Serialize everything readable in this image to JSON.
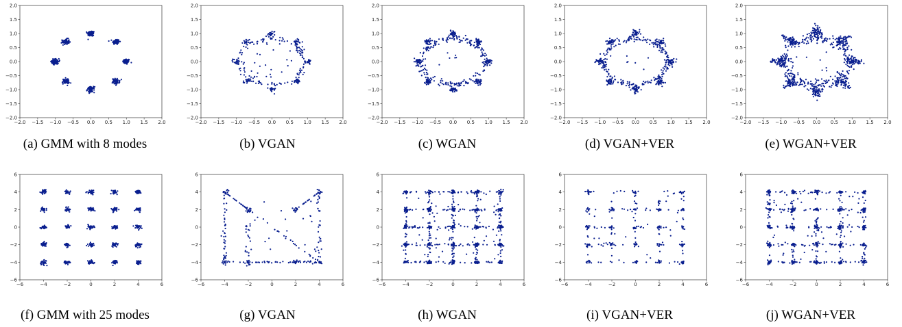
{
  "colors": {
    "points": "#0a1f8f",
    "axes": "#333333",
    "background": "#ffffff"
  },
  "chart_data": [
    {
      "id": "a",
      "type": "scatter",
      "caption": "(a) GMM with 8 modes",
      "xlim": [
        -2,
        2
      ],
      "ylim": [
        -2,
        2
      ],
      "xticks": [
        "−2.0",
        "−1.5",
        "−1.0",
        "−0.5",
        "0.0",
        "0.5",
        "1.0",
        "1.5",
        "2.0"
      ],
      "yticks": [
        "−2.0",
        "−1.5",
        "−1.0",
        "−0.5",
        "0.0",
        "0.5",
        "1.0",
        "1.5",
        "2.0"
      ],
      "modes": [
        [
          1,
          0
        ],
        [
          0.707,
          0.707
        ],
        [
          0,
          1
        ],
        [
          -0.707,
          0.707
        ],
        [
          -1,
          0
        ],
        [
          -0.707,
          -0.707
        ],
        [
          0,
          -1
        ],
        [
          0.707,
          -0.707
        ]
      ],
      "mode_spread": 0.05,
      "scatter_style": "tight-clusters"
    },
    {
      "id": "b",
      "type": "scatter",
      "caption": "(b) VGAN",
      "xlim": [
        -2,
        2
      ],
      "ylim": [
        -2,
        2
      ],
      "xticks": [
        "−2.0",
        "−1.5",
        "−1.0",
        "−0.5",
        "0.0",
        "0.5",
        "1.0",
        "1.5",
        "2.0"
      ],
      "yticks": [
        "−2.0",
        "−1.5",
        "−1.0",
        "−0.5",
        "0.0",
        "0.5",
        "1.0",
        "1.5",
        "2.0"
      ],
      "modes": [
        [
          1,
          0
        ],
        [
          0.707,
          0.707
        ],
        [
          0,
          1
        ],
        [
          -0.707,
          0.707
        ],
        [
          -1,
          0
        ],
        [
          -0.707,
          -0.707
        ],
        [
          0,
          -1
        ],
        [
          0.707,
          -0.707
        ]
      ],
      "mode_spread": 0.05,
      "scatter_style": "ring-sparse"
    },
    {
      "id": "c",
      "type": "scatter",
      "caption": "(c) WGAN",
      "xlim": [
        -2,
        2
      ],
      "ylim": [
        -2,
        2
      ],
      "xticks": [
        "−2.0",
        "−1.5",
        "−1.0",
        "−0.5",
        "0.0",
        "0.5",
        "1.0",
        "1.5",
        "2.0"
      ],
      "yticks": [
        "−2.0",
        "−1.5",
        "−1.0",
        "−0.5",
        "0.0",
        "0.5",
        "1.0",
        "1.5",
        "2.0"
      ],
      "modes": [
        [
          1,
          0
        ],
        [
          0.707,
          0.707
        ],
        [
          0,
          1
        ],
        [
          -0.707,
          0.707
        ],
        [
          -1,
          0
        ],
        [
          -0.707,
          -0.707
        ],
        [
          0,
          -1
        ],
        [
          0.707,
          -0.707
        ]
      ],
      "mode_spread": 0.05,
      "scatter_style": "ring-dense"
    },
    {
      "id": "d",
      "type": "scatter",
      "caption": "(d) VGAN+VER",
      "xlim": [
        -2,
        2
      ],
      "ylim": [
        -2,
        2
      ],
      "xticks": [
        "−2.0",
        "−1.5",
        "−1.0",
        "−0.5",
        "0.0",
        "0.5",
        "1.0",
        "1.5",
        "2.0"
      ],
      "yticks": [
        "−2.0",
        "−1.5",
        "−1.0",
        "−0.5",
        "0.0",
        "0.5",
        "1.0",
        "1.5",
        "2.0"
      ],
      "modes": [
        [
          1,
          0
        ],
        [
          0.707,
          0.707
        ],
        [
          0,
          1
        ],
        [
          -0.707,
          0.707
        ],
        [
          -1,
          0
        ],
        [
          -0.707,
          -0.707
        ],
        [
          0,
          -1
        ],
        [
          0.707,
          -0.707
        ]
      ],
      "mode_spread": 0.06,
      "scatter_style": "ring-dense"
    },
    {
      "id": "e",
      "type": "scatter",
      "caption": "(e) WGAN+VER",
      "xlim": [
        -2,
        2
      ],
      "ylim": [
        -2,
        2
      ],
      "xticks": [
        "−2.0",
        "−1.5",
        "−1.0",
        "−0.5",
        "0.0",
        "0.5",
        "1.0",
        "1.5",
        "2.0"
      ],
      "yticks": [
        "−2.0",
        "−1.5",
        "−1.0",
        "−0.5",
        "0.0",
        "0.5",
        "1.0",
        "1.5",
        "2.0"
      ],
      "modes": [
        [
          1,
          0
        ],
        [
          0.707,
          0.707
        ],
        [
          0,
          1
        ],
        [
          -0.707,
          0.707
        ],
        [
          -1,
          0
        ],
        [
          -0.707,
          -0.707
        ],
        [
          0,
          -1
        ],
        [
          0.707,
          -0.707
        ]
      ],
      "mode_spread": 0.09,
      "scatter_style": "ring-spread"
    },
    {
      "id": "f",
      "type": "scatter",
      "caption": "(f) GMM with 25 modes",
      "xlim": [
        -6,
        6
      ],
      "ylim": [
        -6,
        6
      ],
      "xticks": [
        "−6",
        "−4",
        "−2",
        "0",
        "2",
        "4",
        "6"
      ],
      "yticks": [
        "−6",
        "−4",
        "−2",
        "0",
        "2",
        "4",
        "6"
      ],
      "grid_modes": [
        -4,
        -2,
        0,
        2,
        4
      ],
      "mode_spread": 0.12,
      "scatter_style": "grid-tight"
    },
    {
      "id": "g",
      "type": "scatter",
      "caption": "(g) VGAN",
      "xlim": [
        -6,
        6
      ],
      "ylim": [
        -6,
        6
      ],
      "xticks": [
        "−6",
        "−4",
        "−2",
        "0",
        "2",
        "4",
        "6"
      ],
      "yticks": [
        "−6",
        "−4",
        "−2",
        "0",
        "2",
        "4",
        "6"
      ],
      "grid_modes": [
        -4,
        -2,
        0,
        2,
        4
      ],
      "mode_spread": 0.12,
      "scatter_style": "grid-collapsed"
    },
    {
      "id": "h",
      "type": "scatter",
      "caption": "(h) WGAN",
      "xlim": [
        -6,
        6
      ],
      "ylim": [
        -6,
        6
      ],
      "xticks": [
        "−6",
        "−4",
        "−2",
        "0",
        "2",
        "4",
        "6"
      ],
      "yticks": [
        "−6",
        "−4",
        "−2",
        "0",
        "2",
        "4",
        "6"
      ],
      "grid_modes": [
        -4,
        -2,
        0,
        2,
        4
      ],
      "mode_spread": 0.12,
      "scatter_style": "grid-dense"
    },
    {
      "id": "i",
      "type": "scatter",
      "caption": "(i) VGAN+VER",
      "xlim": [
        -6,
        6
      ],
      "ylim": [
        -6,
        6
      ],
      "xticks": [
        "−6",
        "−4",
        "−2",
        "0",
        "2",
        "4",
        "6"
      ],
      "yticks": [
        "−6",
        "−4",
        "−2",
        "0",
        "2",
        "4",
        "6"
      ],
      "grid_modes": [
        -4,
        -2,
        0,
        2,
        4
      ],
      "mode_spread": 0.12,
      "scatter_style": "grid-sparse"
    },
    {
      "id": "j",
      "type": "scatter",
      "caption": "(j) WGAN+VER",
      "xlim": [
        -6,
        6
      ],
      "ylim": [
        -6,
        6
      ],
      "xticks": [
        "−6",
        "−4",
        "−2",
        "0",
        "2",
        "4",
        "6"
      ],
      "yticks": [
        "−6",
        "−4",
        "−2",
        "0",
        "2",
        "4",
        "6"
      ],
      "grid_modes": [
        -4,
        -2,
        0,
        2,
        4
      ],
      "mode_spread": 0.12,
      "scatter_style": "grid-full"
    }
  ]
}
